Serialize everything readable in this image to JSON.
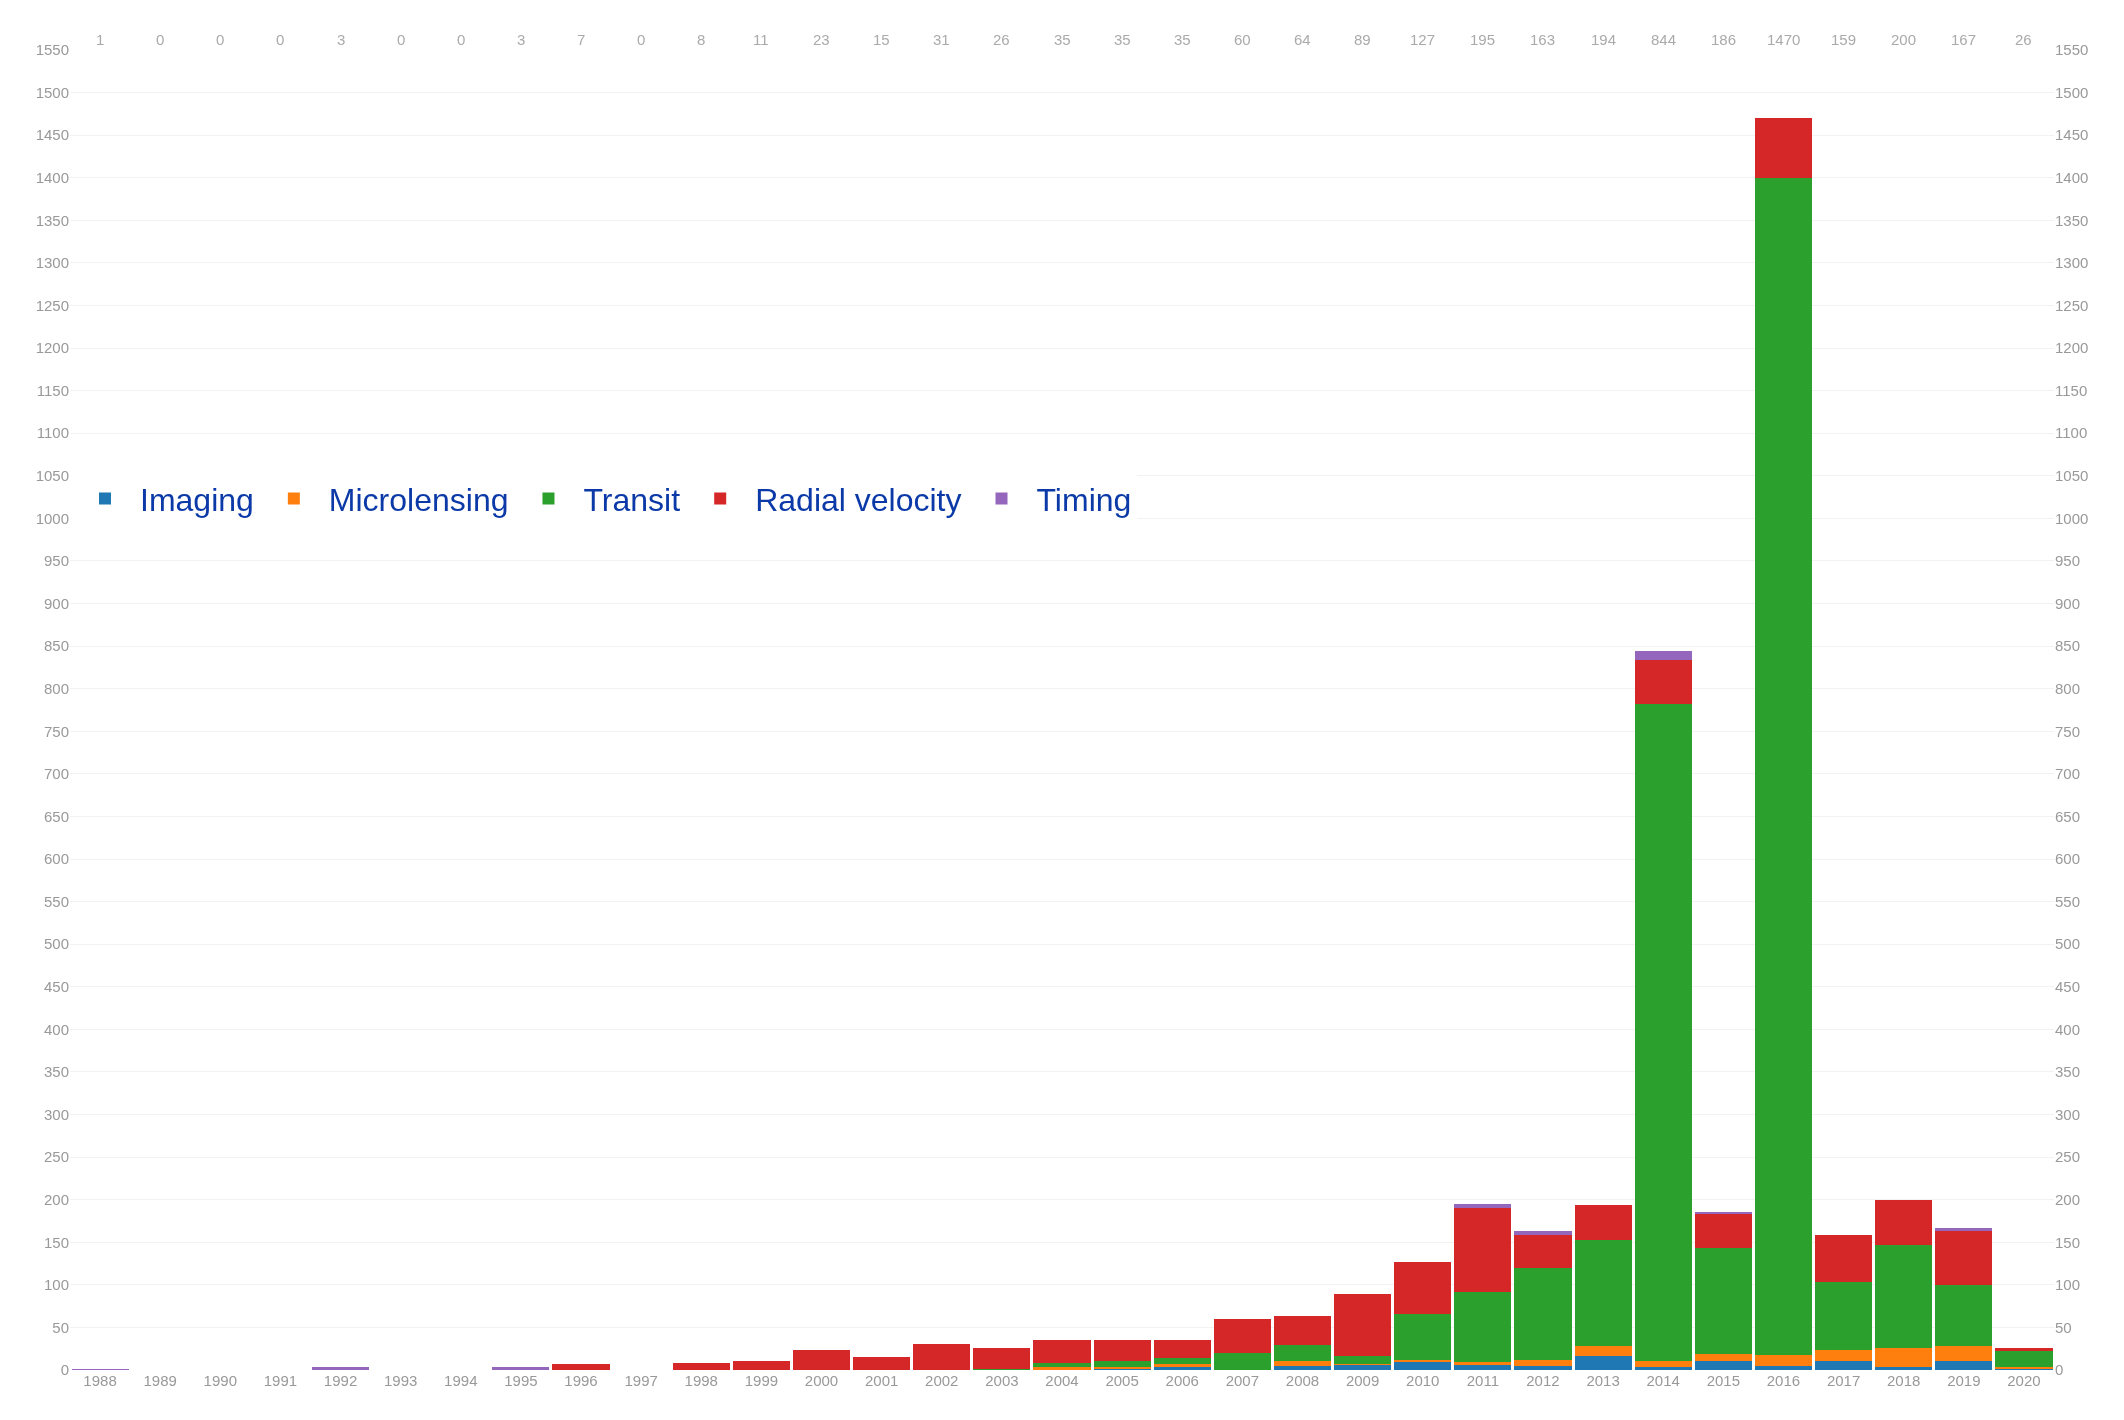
{
  "chart_data": {
    "type": "bar",
    "stacked": true,
    "categories": [
      "1988",
      "1989",
      "1990",
      "1991",
      "1992",
      "1993",
      "1994",
      "1995",
      "1996",
      "1997",
      "1998",
      "1999",
      "2000",
      "2001",
      "2002",
      "2003",
      "2004",
      "2005",
      "2006",
      "2007",
      "2008",
      "2009",
      "2010",
      "2011",
      "2012",
      "2013",
      "2014",
      "2015",
      "2016",
      "2017",
      "2018",
      "2019",
      "2020"
    ],
    "series": [
      {
        "name": "Imaging",
        "color": "#1f77b4",
        "values": [
          0,
          0,
          0,
          0,
          0,
          0,
          0,
          0,
          0,
          0,
          0,
          0,
          0,
          0,
          0,
          0,
          0,
          2,
          4,
          0,
          5,
          6,
          10,
          7,
          5,
          17,
          3,
          11,
          5,
          11,
          3,
          11,
          1
        ]
      },
      {
        "name": "Microlensing",
        "color": "#ff7f0e",
        "values": [
          0,
          0,
          0,
          0,
          0,
          0,
          0,
          0,
          0,
          0,
          0,
          0,
          0,
          0,
          0,
          0,
          3,
          1,
          3,
          0,
          6,
          1,
          2,
          2,
          7,
          11,
          8,
          8,
          13,
          13,
          23,
          17,
          3
        ]
      },
      {
        "name": "Transit",
        "color": "#2ca02c",
        "values": [
          0,
          0,
          0,
          0,
          0,
          0,
          0,
          0,
          0,
          0,
          0,
          0,
          0,
          0,
          0,
          1,
          5,
          8,
          7,
          20,
          18,
          10,
          54,
          83,
          108,
          125,
          771,
          124,
          1382,
          79,
          121,
          72,
          18
        ]
      },
      {
        "name": "Radial velocity",
        "color": "#d62728",
        "values": [
          0,
          0,
          0,
          0,
          0,
          0,
          0,
          0,
          7,
          0,
          8,
          11,
          23,
          15,
          31,
          25,
          27,
          24,
          21,
          40,
          35,
          72,
          61,
          98,
          39,
          41,
          52,
          41,
          70,
          56,
          53,
          63,
          4
        ]
      },
      {
        "name": "Timing",
        "color": "#9467bd",
        "values": [
          1,
          0,
          0,
          0,
          3,
          0,
          0,
          3,
          0,
          0,
          0,
          0,
          0,
          0,
          0,
          0,
          0,
          0,
          0,
          0,
          0,
          0,
          0,
          5,
          4,
          0,
          10,
          2,
          0,
          0,
          0,
          4,
          0
        ]
      }
    ],
    "annotations": [
      "1",
      "0",
      "0",
      "0",
      "3",
      "0",
      "0",
      "3",
      "7",
      "0",
      "8",
      "11",
      "23",
      "15",
      "31",
      "26",
      "35",
      "35",
      "35",
      "60",
      "64",
      "89",
      "127",
      "195",
      "163",
      "194",
      "844",
      "186",
      "1470",
      "159",
      "200",
      "167",
      "26"
    ],
    "ylim": [
      0,
      1550
    ],
    "yticks": [
      0,
      50,
      100,
      150,
      200,
      250,
      300,
      350,
      400,
      450,
      500,
      550,
      600,
      650,
      700,
      750,
      800,
      850,
      900,
      950,
      1000,
      1050,
      1100,
      1150,
      1200,
      1250,
      1300,
      1350,
      1400,
      1450,
      1500,
      1550
    ],
    "y2lim": [
      0,
      1550
    ],
    "y2ticks": [
      0,
      50,
      100,
      150,
      200,
      250,
      300,
      350,
      400,
      450,
      500,
      550,
      600,
      650,
      700,
      750,
      800,
      850,
      900,
      950,
      1000,
      1050,
      1100,
      1150,
      1200,
      1250,
      1300,
      1350,
      1400,
      1450,
      1500,
      1550
    ],
    "grid": "y",
    "legend": "left"
  }
}
